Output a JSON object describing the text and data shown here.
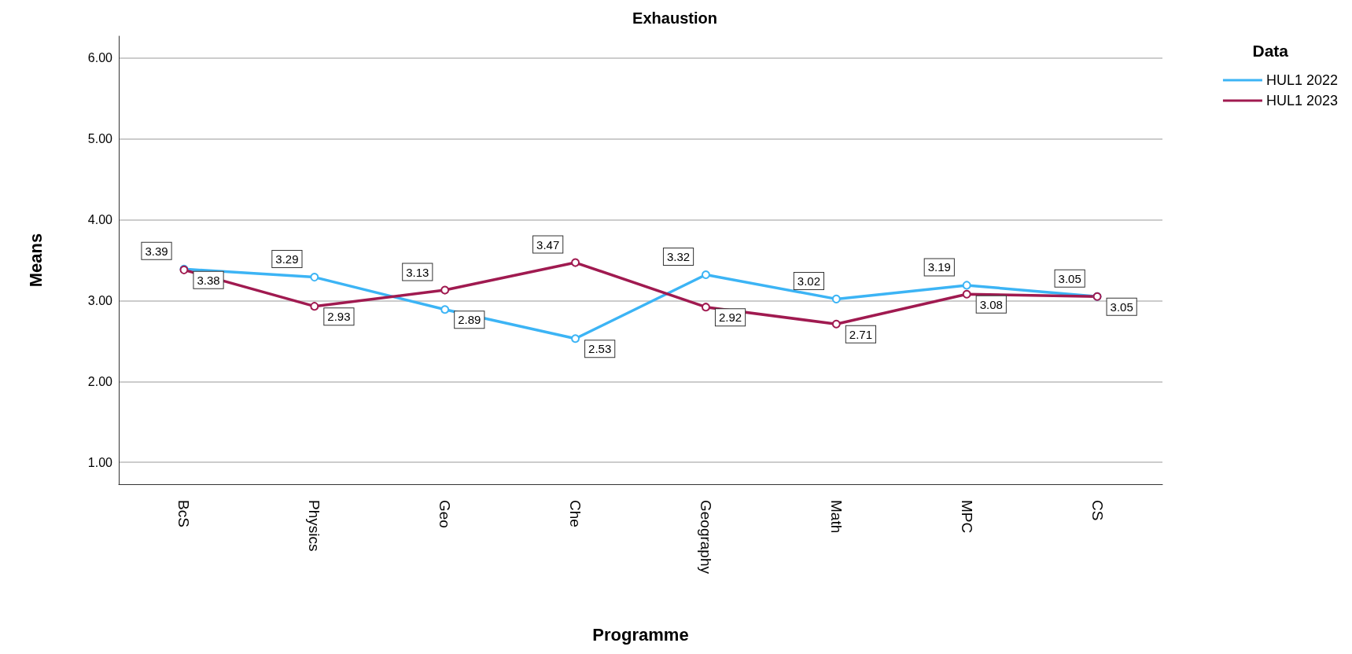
{
  "chart_data": {
    "type": "line",
    "title": "Exhaustion",
    "xlabel": "Programme",
    "ylabel": "Means",
    "legend_title": "Data",
    "categories": [
      "BcS",
      "Physics",
      "Geo",
      "Che",
      "Geography",
      "Math",
      "MPC",
      "CS"
    ],
    "series": [
      {
        "name": "HUL1 2022",
        "color": "#3cb4f5",
        "values": [
          3.39,
          3.29,
          2.89,
          2.53,
          3.32,
          3.02,
          3.19,
          3.05
        ]
      },
      {
        "name": "HUL1 2023",
        "color": "#a01a50",
        "values": [
          3.38,
          2.93,
          3.13,
          3.47,
          2.92,
          2.71,
          3.08,
          3.05
        ]
      }
    ],
    "ylim": [
      0.73,
      6.27
    ],
    "yticks": [
      {
        "value": 1,
        "label": "1.00"
      },
      {
        "value": 2,
        "label": "2.00"
      },
      {
        "value": 3,
        "label": "3.00"
      },
      {
        "value": 4,
        "label": "4.00"
      },
      {
        "value": 5,
        "label": "5.00"
      },
      {
        "value": 6,
        "label": "6.00"
      }
    ],
    "grid": "y",
    "legend": "top right",
    "marker": "circle",
    "line_style": "solid",
    "data_labels": true
  }
}
